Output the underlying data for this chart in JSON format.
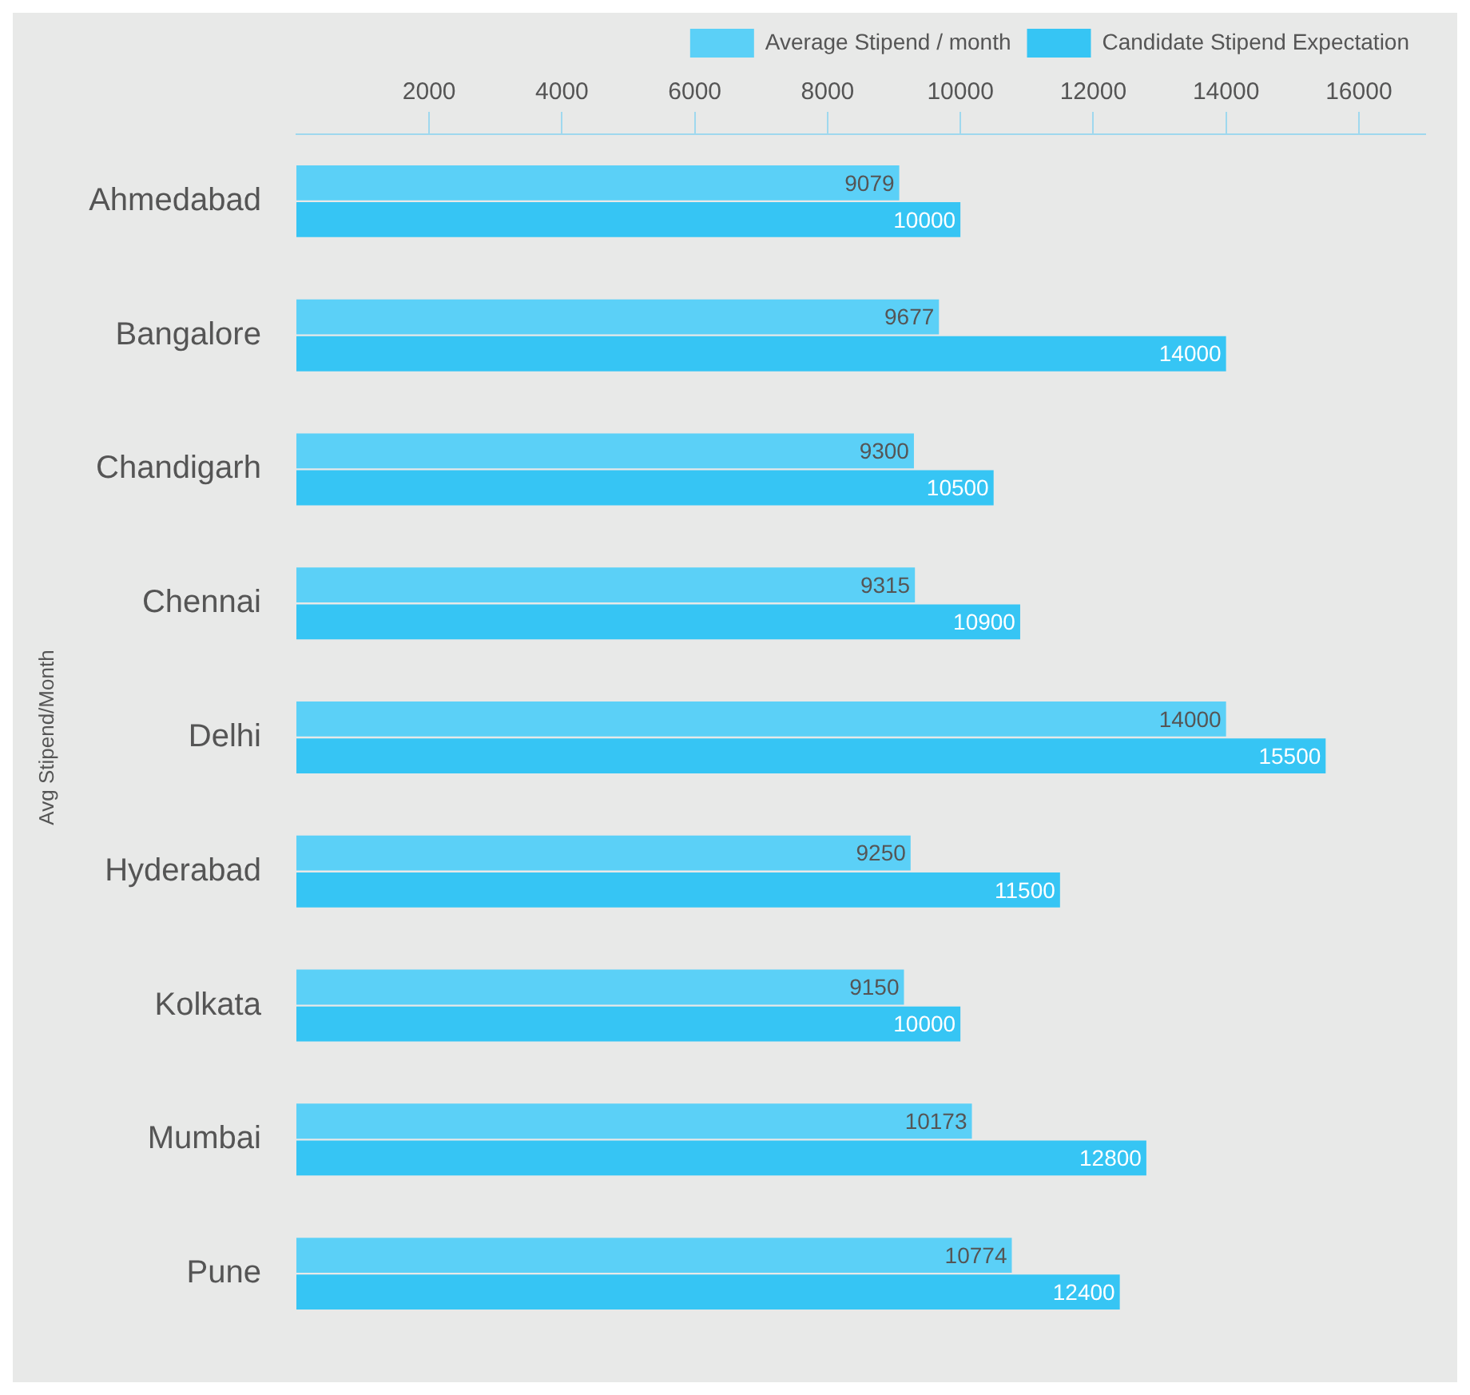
{
  "chart_data": {
    "type": "bar",
    "orientation": "horizontal",
    "ylabel": "Avg Stipend/Month",
    "categories": [
      "Ahmedabad",
      "Bangalore",
      "Chandigarh",
      "Chennai",
      "Delhi",
      "Hyderabad",
      "Kolkata",
      "Mumbai",
      "Pune"
    ],
    "series": [
      {
        "name": "Average Stipend / month",
        "color": "#5bd0f7",
        "values": [
          9079,
          9677,
          9300,
          9315,
          14000,
          9250,
          9150,
          10173,
          10774
        ]
      },
      {
        "name": "Candidate Stipend Expectation",
        "color": "#36c5f4",
        "values": [
          10000,
          14000,
          10500,
          10900,
          15500,
          11500,
          10000,
          12800,
          12400
        ]
      }
    ],
    "xlim": [
      0,
      17000
    ],
    "xticks": [
      2000,
      4000,
      6000,
      8000,
      10000,
      12000,
      14000,
      16000
    ],
    "data_labels": true,
    "legend": "top right",
    "grid": false
  }
}
